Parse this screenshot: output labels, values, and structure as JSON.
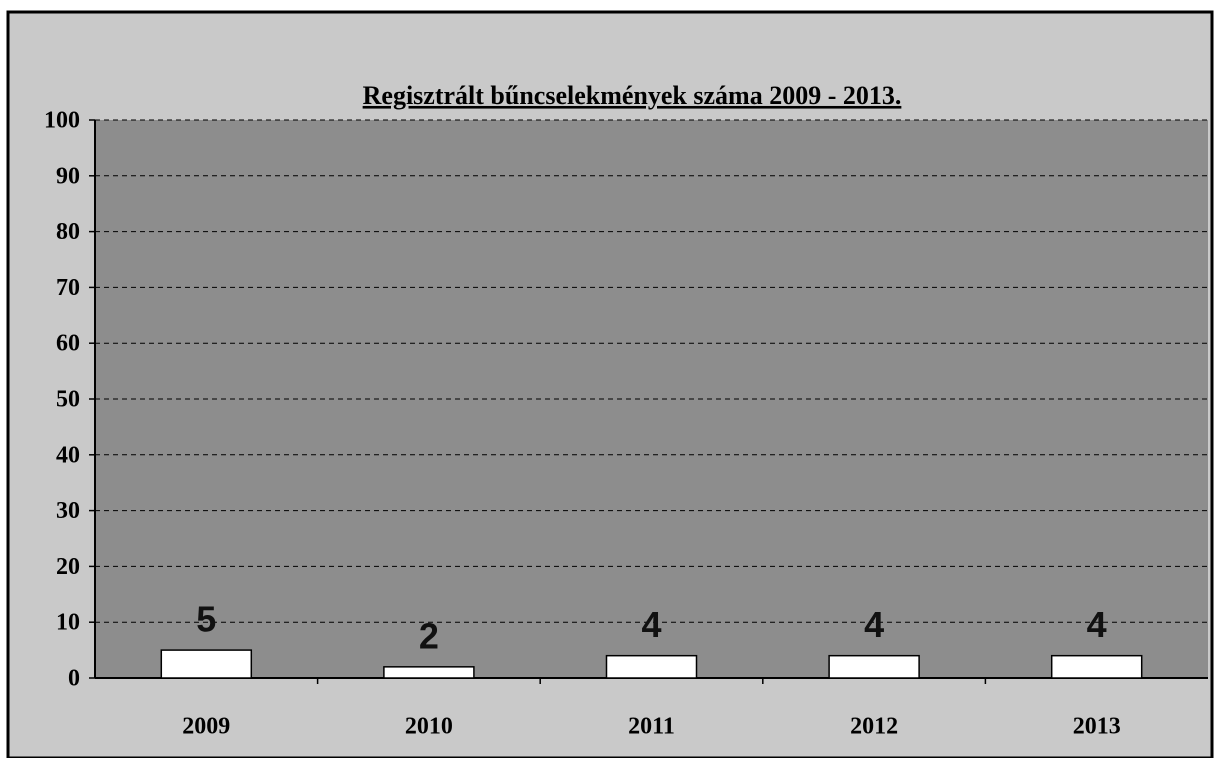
{
  "chart_data": {
    "type": "bar",
    "title": "Regisztrált bűncselekmények száma 2009 - 2013.",
    "categories": [
      "2009",
      "2010",
      "2011",
      "2012",
      "2013"
    ],
    "values": [
      5,
      2,
      4,
      4,
      4
    ],
    "color": "#ffffff",
    "ylim": [
      0,
      100
    ],
    "yticks": [
      0,
      10,
      20,
      30,
      40,
      50,
      60,
      70,
      80,
      90,
      100
    ],
    "grid": true
  }
}
